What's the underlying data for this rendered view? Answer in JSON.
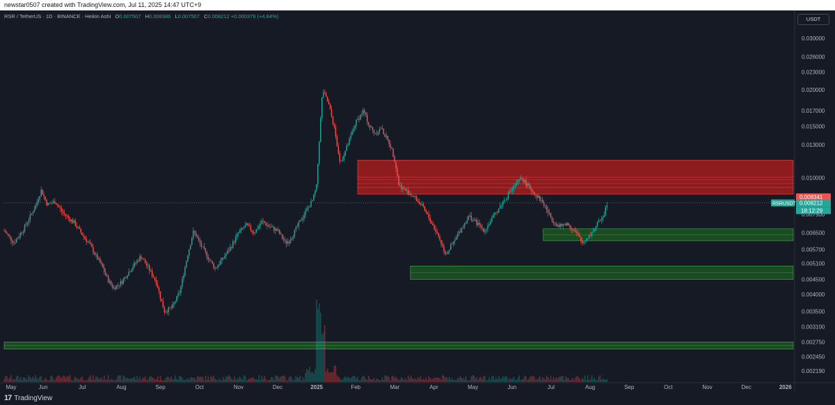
{
  "attribution": "newstar0507 created with TradingView.com, Jul 11, 2025 14:47 UTC+9",
  "legend": {
    "symbol": "RSR / TetherUS · 1D · BINANCE · Heikin Ashi",
    "o_label": "O",
    "o": "0.007507",
    "h_label": "H",
    "h": "0.008386",
    "l_label": "L",
    "l": "0.007507",
    "c_label": "C",
    "c": "0.008212",
    "change": "+0.000379 (+4.84%)"
  },
  "currency": "USDT",
  "footer_brand": "TradingView",
  "colors": {
    "background": "#161a25",
    "up": "#26a69a",
    "down": "#ef5350",
    "resistance_zone": "#b71c1c",
    "support_zone": "#1b5e20",
    "grid": "#1e222d",
    "axis_text": "#b2b5be"
  },
  "chart_data": {
    "type": "candlestick",
    "scale": "log",
    "grid": false,
    "x_tick_labels": [
      "May",
      "Jun",
      "Jul",
      "Aug",
      "Sep",
      "Oct",
      "Nov",
      "Dec",
      "2025",
      "Feb",
      "Mar",
      "Apr",
      "May",
      "Jun",
      "Jul",
      "Aug",
      "Sep",
      "Oct",
      "Nov",
      "Dec",
      "2026"
    ],
    "y_tick_labels": [
      "0.030000",
      "0.026000",
      "0.023000",
      "0.020000",
      "0.017000",
      "0.015000",
      "0.013000",
      "0.010000",
      "0.007500",
      "0.006500",
      "0.005700",
      "0.005100",
      "0.004500",
      "0.004000",
      "0.003500",
      "0.003100",
      "0.002750",
      "0.002450",
      "0.002190"
    ],
    "y_ticks": [
      0.03,
      0.026,
      0.023,
      0.02,
      0.017,
      0.015,
      0.013,
      0.01,
      0.0075,
      0.0065,
      0.0057,
      0.0051,
      0.0045,
      0.004,
      0.0035,
      0.0031,
      0.00275,
      0.00245,
      0.00219
    ],
    "ylim": [
      0.00205,
      0.0335
    ],
    "price_labels": [
      {
        "value": 0.008341,
        "text": "0.008341",
        "color": "#ef5350"
      },
      {
        "value": 0.008212,
        "text": "0.008212",
        "color": "#26a69a"
      }
    ],
    "symbol_tag": "RSRUSDT",
    "countdown": "18:12:29",
    "last_price": 0.008212,
    "zones": [
      {
        "kind": "resistance",
        "top": 0.0115,
        "bottom": 0.0088,
        "start_month": 9.05,
        "end_month": "right"
      },
      {
        "kind": "support",
        "top": 0.0067,
        "bottom": 0.0061,
        "start_month": 13.8,
        "end_month": "right"
      },
      {
        "kind": "support",
        "top": 0.005,
        "bottom": 0.0045,
        "start_month": 10.4,
        "end_month": "right"
      },
      {
        "kind": "support",
        "top": 0.00275,
        "bottom": 0.0026,
        "start_month": 0,
        "end_month": "right"
      }
    ],
    "price_path": [
      [
        0,
        0.0066
      ],
      [
        0.25,
        0.006
      ],
      [
        0.5,
        0.0067
      ],
      [
        0.8,
        0.008
      ],
      [
        0.95,
        0.0091
      ],
      [
        1.1,
        0.0081
      ],
      [
        1.3,
        0.0083
      ],
      [
        1.5,
        0.0076
      ],
      [
        1.8,
        0.007
      ],
      [
        2.0,
        0.0064
      ],
      [
        2.2,
        0.0059
      ],
      [
        2.35,
        0.0054
      ],
      [
        2.5,
        0.005
      ],
      [
        2.65,
        0.0045
      ],
      [
        2.8,
        0.0042
      ],
      [
        3.0,
        0.0044
      ],
      [
        3.3,
        0.005
      ],
      [
        3.5,
        0.0054
      ],
      [
        3.7,
        0.0049
      ],
      [
        3.9,
        0.0044
      ],
      [
        4.0,
        0.0039
      ],
      [
        4.1,
        0.0035
      ],
      [
        4.3,
        0.0036
      ],
      [
        4.5,
        0.0041
      ],
      [
        4.7,
        0.0055
      ],
      [
        4.85,
        0.0066
      ],
      [
        5.0,
        0.006
      ],
      [
        5.2,
        0.0054
      ],
      [
        5.4,
        0.0049
      ],
      [
        5.6,
        0.0053
      ],
      [
        5.8,
        0.0058
      ],
      [
        6.0,
        0.0065
      ],
      [
        6.2,
        0.0069
      ],
      [
        6.4,
        0.0065
      ],
      [
        6.6,
        0.0071
      ],
      [
        6.8,
        0.0068
      ],
      [
        7.0,
        0.0066
      ],
      [
        7.2,
        0.006
      ],
      [
        7.3,
        0.0061
      ],
      [
        7.5,
        0.0068
      ],
      [
        7.7,
        0.0076
      ],
      [
        7.9,
        0.0084
      ],
      [
        8.0,
        0.0094
      ],
      [
        8.05,
        0.0125
      ],
      [
        8.15,
        0.02
      ],
      [
        8.3,
        0.018
      ],
      [
        8.45,
        0.0148
      ],
      [
        8.6,
        0.0112
      ],
      [
        8.8,
        0.013
      ],
      [
        9.0,
        0.0155
      ],
      [
        9.2,
        0.017
      ],
      [
        9.35,
        0.015
      ],
      [
        9.5,
        0.0142
      ],
      [
        9.65,
        0.0148
      ],
      [
        9.8,
        0.0136
      ],
      [
        9.9,
        0.0128
      ],
      [
        10.0,
        0.0115
      ],
      [
        10.1,
        0.0095
      ],
      [
        10.3,
        0.009
      ],
      [
        10.5,
        0.0086
      ],
      [
        10.7,
        0.008
      ],
      [
        10.9,
        0.0072
      ],
      [
        11.1,
        0.0064
      ],
      [
        11.3,
        0.0055
      ],
      [
        11.5,
        0.006
      ],
      [
        11.7,
        0.0067
      ],
      [
        11.9,
        0.0074
      ],
      [
        12.1,
        0.007
      ],
      [
        12.3,
        0.0066
      ],
      [
        12.5,
        0.0073
      ],
      [
        12.7,
        0.008
      ],
      [
        12.9,
        0.0088
      ],
      [
        13.1,
        0.0095
      ],
      [
        13.25,
        0.01
      ],
      [
        13.4,
        0.0094
      ],
      [
        13.6,
        0.0088
      ],
      [
        13.8,
        0.0082
      ],
      [
        14.0,
        0.0073
      ],
      [
        14.2,
        0.0068
      ],
      [
        14.4,
        0.007
      ],
      [
        14.6,
        0.0066
      ],
      [
        14.8,
        0.006
      ],
      [
        15.0,
        0.0064
      ],
      [
        15.2,
        0.007
      ],
      [
        15.35,
        0.0075
      ],
      [
        15.43,
        0.0082
      ]
    ],
    "x_range": [
      0,
      20.2
    ]
  }
}
